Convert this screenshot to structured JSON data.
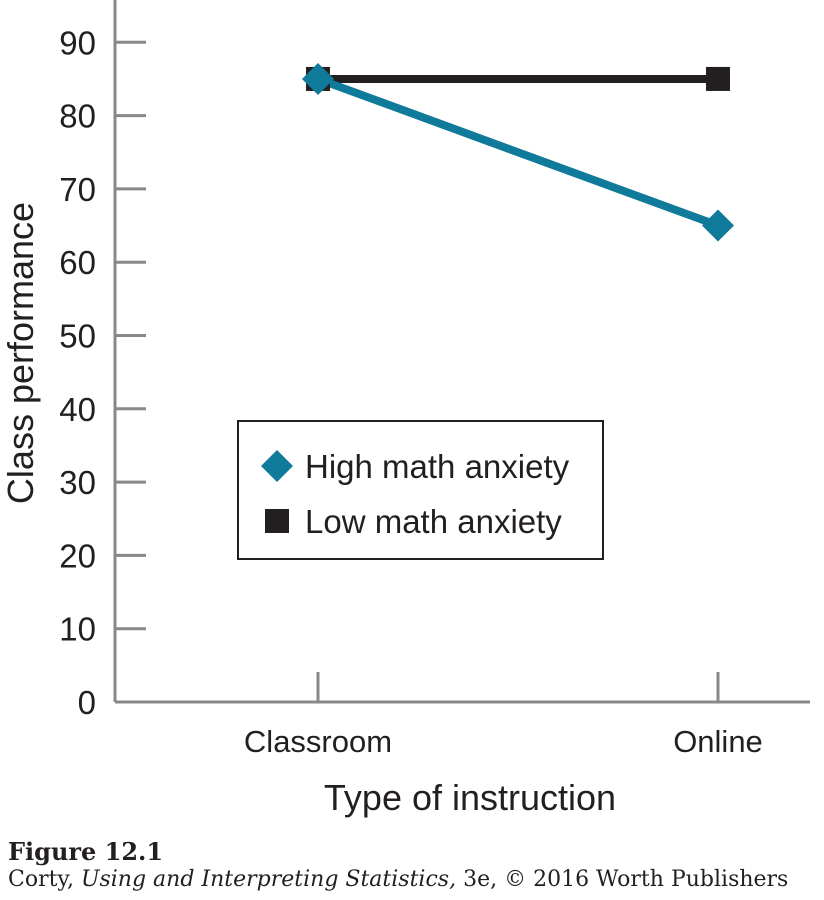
{
  "chart_data": {
    "type": "line",
    "title": "",
    "xlabel": "Type of instruction",
    "ylabel": "Class performance",
    "categories": [
      "Classroom",
      "Online"
    ],
    "ylim": [
      0,
      95
    ],
    "yticks": [
      0,
      10,
      20,
      30,
      40,
      50,
      60,
      70,
      80,
      90
    ],
    "legend_position": "center",
    "grid": false,
    "series": [
      {
        "name": "High math anxiety",
        "values": [
          85,
          65
        ],
        "color": "#0f7a9a",
        "marker": "diamond"
      },
      {
        "name": "Low math anxiety",
        "values": [
          85,
          85
        ],
        "color": "#231f20",
        "marker": "square"
      }
    ]
  },
  "caption": {
    "figure_label": "Figure 12.1",
    "author": "Corty,",
    "book_title": "Using and Interpreting Statistics,",
    "edition_publisher": "3e, © 2016 Worth Publishers"
  }
}
